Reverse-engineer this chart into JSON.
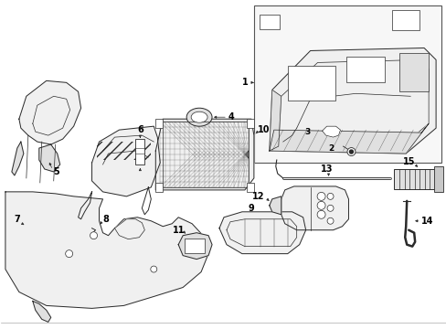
{
  "bg_color": "#ffffff",
  "line_color": "#2a2a2a",
  "label_color": "#000000",
  "fill_light": "#f0f0f0",
  "fill_mid": "#e0e0e0",
  "fill_dark": "#c8c8c8"
}
